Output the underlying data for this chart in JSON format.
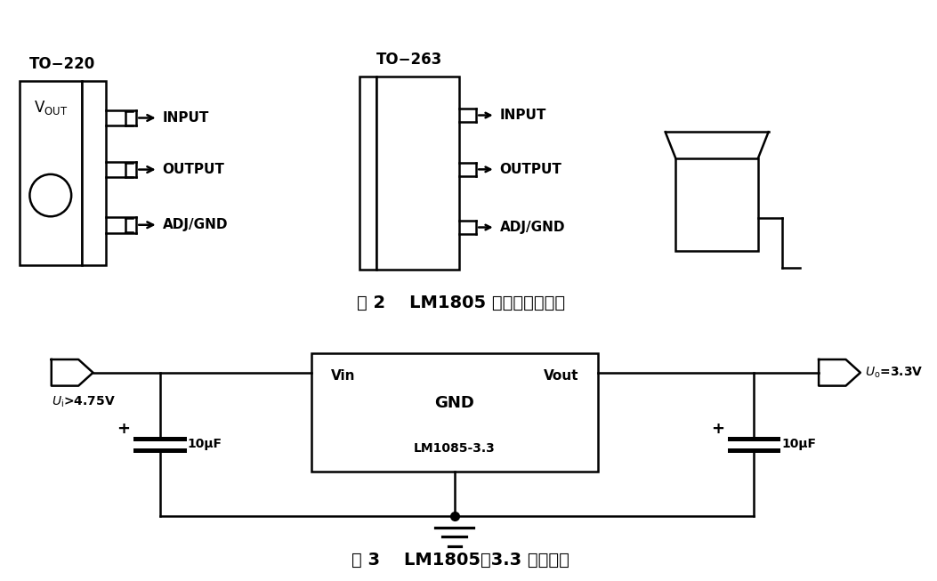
{
  "bg_color": "#ffffff",
  "fig2_title": "图 2    LM1805 封装形式和引脚",
  "fig3_title": "图 3    LM1805－3.3 固定输出",
  "pin_labels_220": [
    "INPUT",
    "OUTPUT",
    "ADJ/GND"
  ],
  "pin_labels_263": [
    "INPUT",
    "OUTPUT",
    "ADJ/GND"
  ],
  "lw": 1.8
}
